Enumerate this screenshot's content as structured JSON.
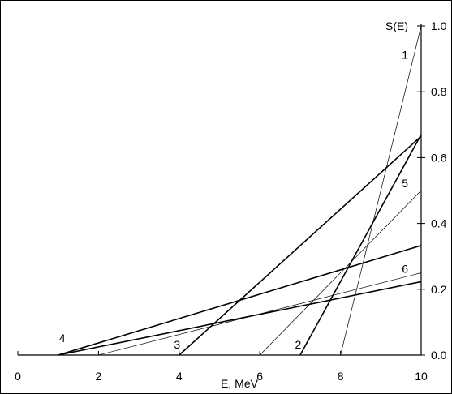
{
  "chart_data": {
    "type": "line",
    "title": "",
    "xlabel": "E, MeV",
    "ylabel": "S(E)",
    "xlim": [
      0,
      10
    ],
    "ylim": [
      0,
      1.0
    ],
    "x_ticks": [
      {
        "value": 0,
        "label": "0"
      },
      {
        "value": 2,
        "label": "2"
      },
      {
        "value": 4,
        "label": "4"
      },
      {
        "value": 6,
        "label": "6"
      },
      {
        "value": 8,
        "label": "8"
      },
      {
        "value": 10,
        "label": "10"
      }
    ],
    "y_ticks": [
      {
        "value": 0.0,
        "label": "0.0"
      },
      {
        "value": 0.2,
        "label": "0.2"
      },
      {
        "value": 0.4,
        "label": "0.4"
      },
      {
        "value": 0.6,
        "label": "0.6"
      },
      {
        "value": 0.8,
        "label": "0.8"
      },
      {
        "value": 1.0,
        "label": "1.0"
      }
    ],
    "grid": false,
    "series": [
      {
        "label": "1",
        "x": [
          8,
          10
        ],
        "y": [
          0,
          1.0
        ],
        "label_at": {
          "x": 9.6,
          "y": 0.9
        },
        "stroke_width": 0.7
      },
      {
        "label": "2",
        "x": [
          7,
          10
        ],
        "y": [
          0,
          0.67
        ],
        "label_at": {
          "x": 6.95,
          "y": 0.02
        },
        "stroke_width": 1.6
      },
      {
        "label": "3",
        "x": [
          4,
          10
        ],
        "y": [
          0,
          0.665
        ],
        "label_at": {
          "x": 3.95,
          "y": 0.02
        },
        "stroke_width": 1.6
      },
      {
        "label": "4",
        "x": [
          1,
          10
        ],
        "y": [
          0,
          0.223
        ],
        "label_at": {
          "x": 1.1,
          "y": 0.04
        },
        "stroke_width": 1.6
      },
      {
        "label": "5",
        "x": [
          6,
          10
        ],
        "y": [
          0,
          0.5
        ],
        "label_at": {
          "x": 9.6,
          "y": 0.51
        },
        "stroke_width": 0.7
      },
      {
        "label": "6",
        "x": [
          2,
          10
        ],
        "y": [
          0,
          0.25
        ],
        "label_at": {
          "x": 9.6,
          "y": 0.25
        },
        "stroke_width": 0.7
      },
      {
        "label": "",
        "x": [
          1,
          10
        ],
        "y": [
          0,
          0.333
        ],
        "stroke_width": 1.6
      }
    ]
  }
}
